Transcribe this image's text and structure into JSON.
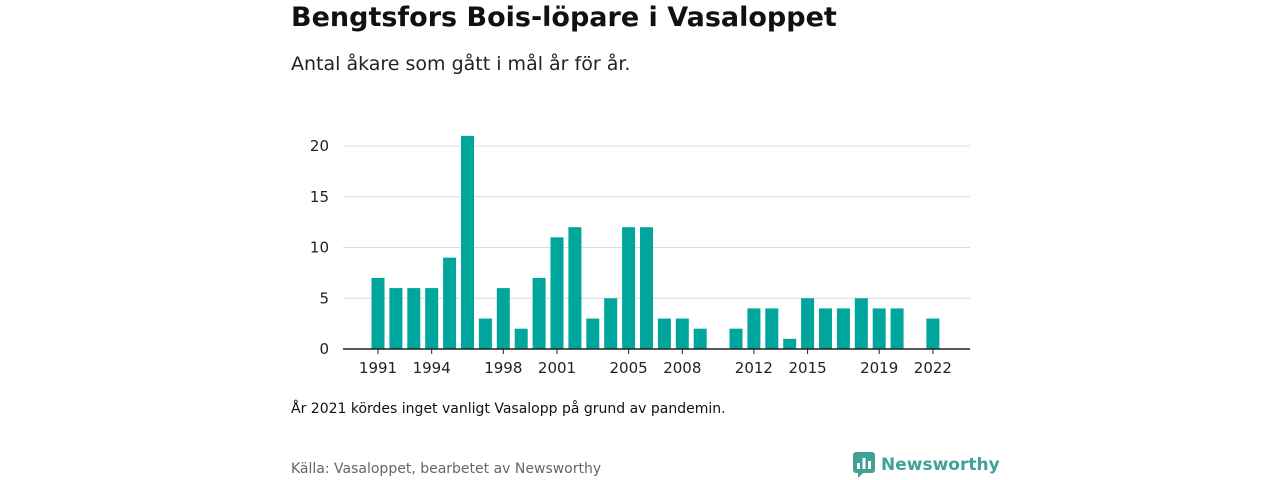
{
  "title": "Bengtsfors Bois-löpare i Vasaloppet",
  "subtitle": "Antal åkare som gått i mål år för år.",
  "note": "År 2021 kördes inget vanligt Vasalopp på grund av pandemin.",
  "source": "Källa: Vasaloppet, bearbetet av Newsworthy",
  "brand": "Newsworthy",
  "colors": {
    "bar": "#00a59b",
    "grid": "#dcdcdc",
    "axis": "#222222",
    "brand": "#3fa295"
  },
  "chart_data": {
    "type": "bar",
    "title": "Bengtsfors Bois-löpare i Vasaloppet",
    "subtitle": "Antal åkare som gått i mål år för år.",
    "xlabel": "",
    "ylabel": "",
    "ylim": [
      0,
      22
    ],
    "yticks": [
      0,
      5,
      10,
      15,
      20
    ],
    "grid": true,
    "categories": [
      1991,
      1992,
      1993,
      1994,
      1995,
      1996,
      1997,
      1998,
      1999,
      2000,
      2001,
      2002,
      2003,
      2004,
      2005,
      2006,
      2007,
      2008,
      2009,
      2010,
      2011,
      2012,
      2013,
      2014,
      2015,
      2016,
      2017,
      2018,
      2019,
      2020,
      2021,
      2022
    ],
    "values": [
      7,
      6,
      6,
      6,
      9,
      21,
      3,
      6,
      2,
      7,
      11,
      12,
      3,
      5,
      12,
      12,
      3,
      3,
      2,
      0,
      2,
      4,
      4,
      1,
      5,
      4,
      4,
      5,
      4,
      4,
      0,
      3
    ],
    "xtick_labels": [
      "1991",
      "1994",
      "1998",
      "2001",
      "2005",
      "2008",
      "2012",
      "2015",
      "2019",
      "2022"
    ]
  }
}
